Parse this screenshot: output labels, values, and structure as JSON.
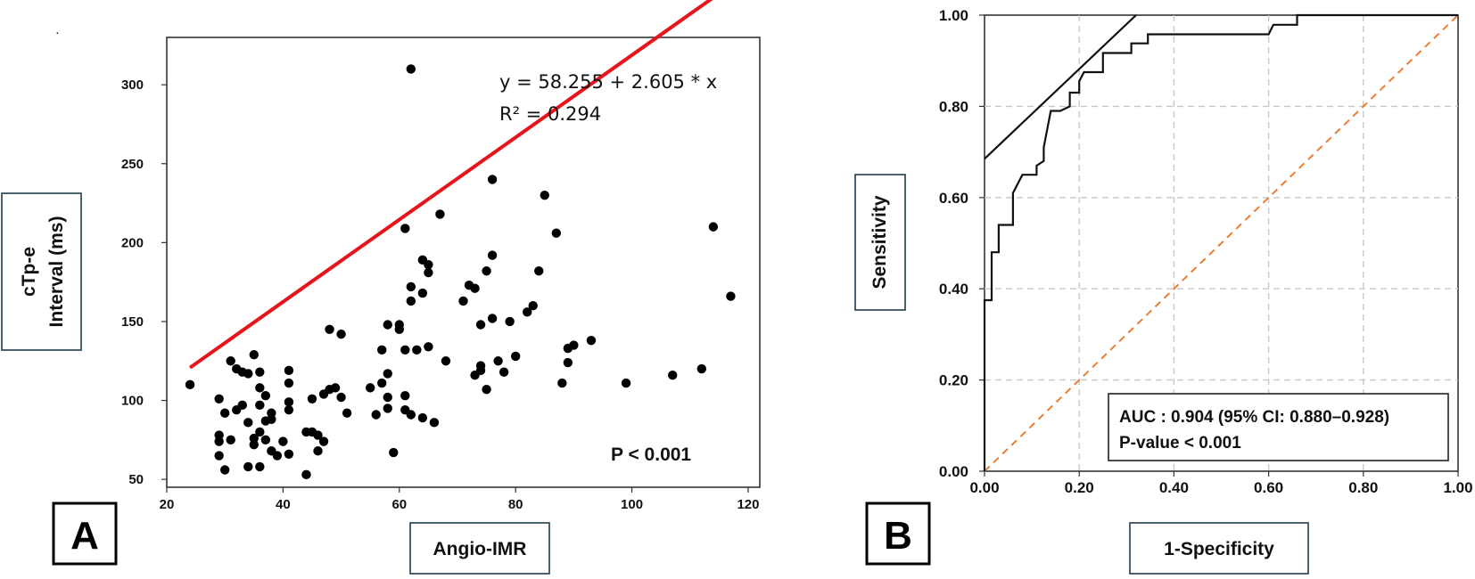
{
  "chart_data": [
    {
      "type": "scatter",
      "panel_label": "A",
      "xlabel": "Angio-IMR",
      "ylabel_lines": [
        "cTp-e",
        "Interval (ms)"
      ],
      "xlim": [
        20,
        122
      ],
      "ylim": [
        45,
        330
      ],
      "xticks": [
        20,
        40,
        60,
        80,
        100,
        120
      ],
      "yticks": [
        50,
        100,
        150,
        200,
        250,
        300
      ],
      "regression": {
        "intercept": 58.255,
        "slope": 2.605,
        "x_range": [
          24,
          116
        ],
        "color": "#e8141b"
      },
      "annotations": {
        "equation": "y = 58.255 + 2.605 * x",
        "r2": "R² = 0.294",
        "p_value": "P < 0.001"
      },
      "points": [
        [
          24,
          110
        ],
        [
          29,
          101
        ],
        [
          29,
          74
        ],
        [
          29,
          78
        ],
        [
          29,
          65
        ],
        [
          30,
          92
        ],
        [
          30,
          56
        ],
        [
          31,
          75
        ],
        [
          31,
          125
        ],
        [
          32,
          120
        ],
        [
          32,
          94
        ],
        [
          33,
          118
        ],
        [
          33,
          97
        ],
        [
          34,
          117
        ],
        [
          34,
          86
        ],
        [
          34,
          58
        ],
        [
          35,
          129
        ],
        [
          35,
          72
        ],
        [
          35,
          76
        ],
        [
          36,
          118
        ],
        [
          36,
          108
        ],
        [
          36,
          97
        ],
        [
          36,
          80
        ],
        [
          36,
          58
        ],
        [
          37,
          103
        ],
        [
          37,
          87
        ],
        [
          37,
          75
        ],
        [
          38,
          92
        ],
        [
          38,
          88
        ],
        [
          38,
          68
        ],
        [
          39,
          65
        ],
        [
          40,
          74
        ],
        [
          41,
          119
        ],
        [
          41,
          111
        ],
        [
          41,
          99
        ],
        [
          41,
          94
        ],
        [
          41,
          66
        ],
        [
          44,
          53
        ],
        [
          44,
          80
        ],
        [
          45,
          101
        ],
        [
          45,
          80
        ],
        [
          46,
          78
        ],
        [
          46,
          68
        ],
        [
          47,
          74
        ],
        [
          47,
          104
        ],
        [
          48,
          107
        ],
        [
          48,
          145
        ],
        [
          49,
          108
        ],
        [
          50,
          102
        ],
        [
          50,
          142
        ],
        [
          51,
          92
        ],
        [
          55,
          108
        ],
        [
          56,
          91
        ],
        [
          57,
          132
        ],
        [
          57,
          111
        ],
        [
          58,
          117
        ],
        [
          58,
          95
        ],
        [
          58,
          102
        ],
        [
          58,
          148
        ],
        [
          59,
          67
        ],
        [
          60,
          145
        ],
        [
          60,
          148
        ],
        [
          61,
          209
        ],
        [
          61,
          132
        ],
        [
          61,
          103
        ],
        [
          61,
          94
        ],
        [
          62,
          310
        ],
        [
          62,
          172
        ],
        [
          62,
          163
        ],
        [
          62,
          91
        ],
        [
          63,
          132
        ],
        [
          64,
          189
        ],
        [
          64,
          168
        ],
        [
          64,
          89
        ],
        [
          65,
          186
        ],
        [
          65,
          181
        ],
        [
          65,
          134
        ],
        [
          66,
          86
        ],
        [
          67,
          218
        ],
        [
          68,
          125
        ],
        [
          71,
          163
        ],
        [
          72,
          173
        ],
        [
          73,
          171
        ],
        [
          73,
          116
        ],
        [
          74,
          148
        ],
        [
          74,
          122
        ],
        [
          74,
          119
        ],
        [
          75,
          182
        ],
        [
          75,
          107
        ],
        [
          76,
          240
        ],
        [
          76,
          192
        ],
        [
          76,
          152
        ],
        [
          77,
          125
        ],
        [
          78,
          118
        ],
        [
          79,
          150
        ],
        [
          80,
          128
        ],
        [
          82,
          156
        ],
        [
          83,
          160
        ],
        [
          84,
          182
        ],
        [
          85,
          230
        ],
        [
          87,
          206
        ],
        [
          88,
          111
        ],
        [
          89,
          133
        ],
        [
          89,
          124
        ],
        [
          90,
          135
        ],
        [
          93,
          138
        ],
        [
          99,
          111
        ],
        [
          107,
          116
        ],
        [
          112,
          120
        ],
        [
          114,
          210
        ],
        [
          117,
          166
        ]
      ]
    },
    {
      "type": "line",
      "panel_label": "B",
      "xlabel": "1-Specificity",
      "ylabel": "Sensitivity",
      "xlim": [
        0,
        1
      ],
      "ylim": [
        0,
        1
      ],
      "xticks": [
        "0.00",
        "0.20",
        "0.40",
        "0.60",
        "0.80",
        "1.00"
      ],
      "yticks": [
        "0.00",
        "0.20",
        "0.40",
        "0.60",
        "0.80",
        "1.00"
      ],
      "grid": true,
      "roc_curve": [
        [
          0,
          0
        ],
        [
          0,
          0.375
        ],
        [
          0.015,
          0.375
        ],
        [
          0.015,
          0.48
        ],
        [
          0.03,
          0.48
        ],
        [
          0.03,
          0.54
        ],
        [
          0.06,
          0.54
        ],
        [
          0.06,
          0.61
        ],
        [
          0.07,
          0.63
        ],
        [
          0.08,
          0.65
        ],
        [
          0.11,
          0.65
        ],
        [
          0.11,
          0.67
        ],
        [
          0.125,
          0.68
        ],
        [
          0.125,
          0.71
        ],
        [
          0.14,
          0.79
        ],
        [
          0.16,
          0.79
        ],
        [
          0.18,
          0.8
        ],
        [
          0.18,
          0.83
        ],
        [
          0.2,
          0.83
        ],
        [
          0.2,
          0.855
        ],
        [
          0.21,
          0.875
        ],
        [
          0.25,
          0.875
        ],
        [
          0.25,
          0.917
        ],
        [
          0.31,
          0.917
        ],
        [
          0.31,
          0.938
        ],
        [
          0.345,
          0.938
        ],
        [
          0.345,
          0.958
        ],
        [
          0.6,
          0.958
        ],
        [
          0.61,
          0.979
        ],
        [
          0.66,
          0.979
        ],
        [
          0.66,
          1.0
        ],
        [
          1.0,
          1.0
        ]
      ],
      "tangent_line": [
        [
          0,
          0.685
        ],
        [
          0.32,
          1.0
        ]
      ],
      "reference_line": {
        "points": [
          [
            0,
            0
          ],
          [
            1,
            1
          ]
        ],
        "color": "#ed7d31",
        "style": "dashed"
      },
      "annotations": {
        "auc": "AUC : 0.904 (95% CI: 0.880–0.928)",
        "p_value": "P-value < 0.001"
      }
    }
  ],
  "page_mark": "."
}
